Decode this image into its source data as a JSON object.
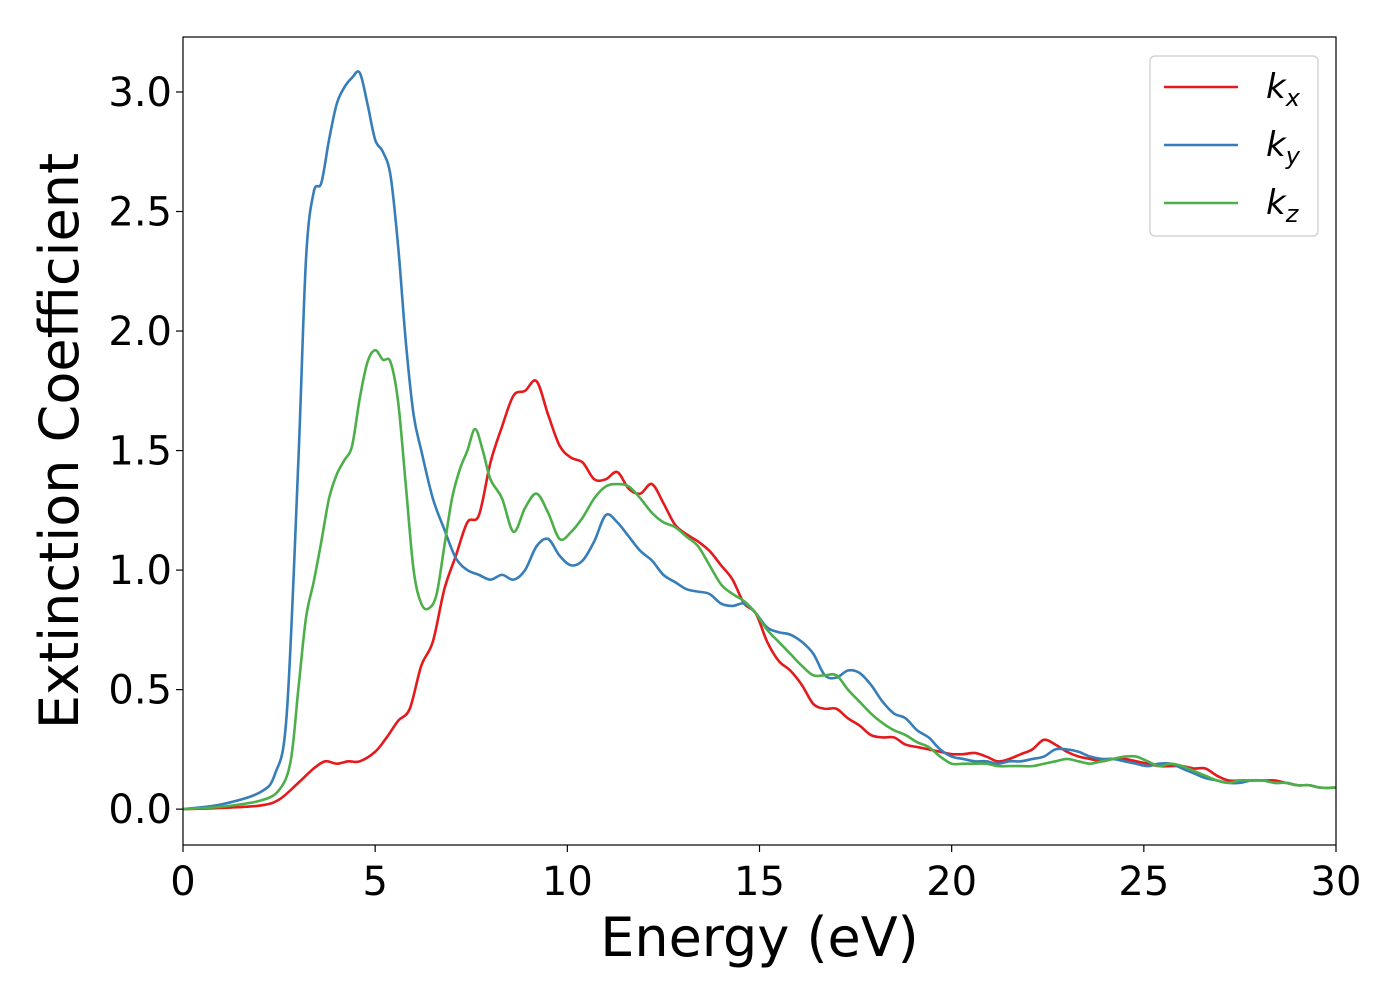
{
  "chart_data": {
    "type": "line",
    "xlabel": "Energy (eV)",
    "ylabel": "Extinction Coefficient",
    "xlim": [
      0,
      30
    ],
    "ylim": [
      -0.15,
      3.23
    ],
    "xticks": [
      0,
      5,
      10,
      15,
      20,
      25,
      30
    ],
    "xtick_labels": [
      "0",
      "5",
      "10",
      "15",
      "20",
      "25",
      "30"
    ],
    "yticks": [
      0.0,
      0.5,
      1.0,
      1.5,
      2.0,
      2.5,
      3.0
    ],
    "ytick_labels": [
      "0.0",
      "0.5",
      "1.0",
      "1.5",
      "2.0",
      "2.5",
      "3.0"
    ],
    "grid": false,
    "legend_position": "top-right",
    "series": [
      {
        "name": "k",
        "subscript": "x",
        "color": "#e41a1c",
        "x": [
          0,
          1,
          2,
          2.5,
          3,
          3.4,
          3.7,
          4.0,
          4.3,
          4.6,
          5.0,
          5.3,
          5.6,
          5.9,
          6.2,
          6.5,
          6.8,
          7.1,
          7.4,
          7.7,
          8.0,
          8.3,
          8.6,
          8.9,
          9.2,
          9.5,
          9.8,
          10.1,
          10.4,
          10.7,
          11.0,
          11.3,
          11.6,
          11.9,
          12.2,
          12.5,
          12.8,
          13.1,
          13.4,
          13.7,
          14.0,
          14.3,
          14.6,
          14.9,
          15.2,
          15.5,
          15.8,
          16.1,
          16.4,
          16.7,
          17.0,
          17.3,
          17.6,
          17.9,
          18.2,
          18.5,
          18.8,
          19.1,
          19.4,
          19.7,
          20.0,
          20.3,
          20.6,
          20.9,
          21.2,
          21.5,
          21.8,
          22.1,
          22.4,
          22.7,
          23.0,
          23.3,
          23.6,
          23.9,
          24.2,
          24.5,
          24.8,
          25.1,
          25.4,
          25.7,
          26.0,
          26.3,
          26.6,
          26.9,
          27.2,
          27.5,
          27.8,
          28.1,
          28.4,
          28.7,
          29.0,
          29.3,
          29.6,
          30.0
        ],
        "y": [
          0,
          0.005,
          0.015,
          0.04,
          0.11,
          0.17,
          0.2,
          0.19,
          0.2,
          0.2,
          0.24,
          0.3,
          0.37,
          0.42,
          0.6,
          0.7,
          0.92,
          1.06,
          1.2,
          1.23,
          1.45,
          1.6,
          1.73,
          1.75,
          1.79,
          1.65,
          1.52,
          1.47,
          1.45,
          1.38,
          1.38,
          1.41,
          1.34,
          1.32,
          1.36,
          1.28,
          1.19,
          1.15,
          1.12,
          1.08,
          1.02,
          0.96,
          0.86,
          0.82,
          0.7,
          0.62,
          0.58,
          0.52,
          0.44,
          0.42,
          0.42,
          0.38,
          0.35,
          0.31,
          0.3,
          0.3,
          0.27,
          0.26,
          0.25,
          0.24,
          0.23,
          0.23,
          0.235,
          0.22,
          0.2,
          0.21,
          0.23,
          0.25,
          0.29,
          0.27,
          0.24,
          0.22,
          0.21,
          0.2,
          0.21,
          0.21,
          0.2,
          0.19,
          0.18,
          0.18,
          0.18,
          0.17,
          0.17,
          0.14,
          0.12,
          0.12,
          0.12,
          0.12,
          0.12,
          0.11,
          0.1,
          0.1,
          0.09,
          0.09
        ]
      },
      {
        "name": "k",
        "subscript": "y",
        "color": "#377eb8",
        "x": [
          0,
          1,
          2,
          2.4,
          2.7,
          3.0,
          3.2,
          3.4,
          3.6,
          3.8,
          4.0,
          4.2,
          4.4,
          4.6,
          4.8,
          5.0,
          5.2,
          5.4,
          5.6,
          5.8,
          6.0,
          6.2,
          6.5,
          6.8,
          7.1,
          7.4,
          7.7,
          8.0,
          8.3,
          8.6,
          8.9,
          9.2,
          9.5,
          9.8,
          10.1,
          10.4,
          10.7,
          11.0,
          11.3,
          11.6,
          11.9,
          12.2,
          12.5,
          12.8,
          13.1,
          13.4,
          13.7,
          14.0,
          14.3,
          14.6,
          14.9,
          15.2,
          15.5,
          15.8,
          16.1,
          16.4,
          16.7,
          17.0,
          17.3,
          17.6,
          17.9,
          18.2,
          18.5,
          18.8,
          19.1,
          19.4,
          19.7,
          20.0,
          20.3,
          20.6,
          20.9,
          21.2,
          21.5,
          21.8,
          22.1,
          22.4,
          22.7,
          23.0,
          23.3,
          23.6,
          23.9,
          24.2,
          24.5,
          24.8,
          25.1,
          25.4,
          25.7,
          26.0,
          26.3,
          26.6,
          26.9,
          27.2,
          27.5,
          27.8,
          28.1,
          28.4,
          28.7,
          29.0,
          29.3,
          29.6,
          30.0
        ],
        "y": [
          0,
          0.02,
          0.07,
          0.15,
          0.4,
          1.45,
          2.3,
          2.58,
          2.62,
          2.8,
          2.95,
          3.02,
          3.06,
          3.08,
          2.95,
          2.8,
          2.75,
          2.65,
          2.35,
          1.95,
          1.65,
          1.5,
          1.3,
          1.17,
          1.05,
          1.0,
          0.98,
          0.96,
          0.98,
          0.96,
          1.0,
          1.1,
          1.13,
          1.06,
          1.02,
          1.04,
          1.12,
          1.23,
          1.2,
          1.14,
          1.08,
          1.04,
          0.98,
          0.95,
          0.92,
          0.91,
          0.9,
          0.86,
          0.85,
          0.86,
          0.82,
          0.76,
          0.74,
          0.73,
          0.7,
          0.65,
          0.56,
          0.55,
          0.58,
          0.57,
          0.52,
          0.45,
          0.4,
          0.38,
          0.33,
          0.3,
          0.25,
          0.22,
          0.21,
          0.2,
          0.2,
          0.19,
          0.2,
          0.2,
          0.21,
          0.22,
          0.25,
          0.25,
          0.24,
          0.22,
          0.21,
          0.21,
          0.2,
          0.19,
          0.18,
          0.19,
          0.19,
          0.17,
          0.15,
          0.13,
          0.12,
          0.11,
          0.11,
          0.12,
          0.12,
          0.11,
          0.11,
          0.1,
          0.1,
          0.09,
          0.09
        ]
      },
      {
        "name": "k",
        "subscript": "z",
        "color": "#4daf4a",
        "x": [
          0,
          1,
          2,
          2.5,
          2.8,
          3.0,
          3.2,
          3.4,
          3.6,
          3.8,
          4.0,
          4.2,
          4.4,
          4.6,
          4.8,
          5.0,
          5.2,
          5.4,
          5.6,
          5.8,
          6.0,
          6.2,
          6.4,
          6.6,
          6.8,
          7.0,
          7.2,
          7.4,
          7.6,
          7.8,
          8.0,
          8.3,
          8.6,
          8.9,
          9.2,
          9.5,
          9.8,
          10.1,
          10.4,
          10.7,
          11.0,
          11.3,
          11.6,
          11.9,
          12.2,
          12.5,
          12.8,
          13.1,
          13.4,
          13.7,
          14.0,
          14.3,
          14.6,
          14.9,
          15.2,
          15.5,
          15.8,
          16.1,
          16.4,
          16.7,
          17.0,
          17.3,
          17.6,
          17.9,
          18.2,
          18.5,
          18.8,
          19.1,
          19.4,
          19.7,
          20.0,
          20.3,
          20.6,
          20.9,
          21.2,
          21.5,
          21.8,
          22.1,
          22.4,
          22.7,
          23.0,
          23.3,
          23.6,
          23.9,
          24.2,
          24.5,
          24.8,
          25.1,
          25.4,
          25.7,
          26.0,
          26.3,
          26.6,
          26.9,
          27.2,
          27.5,
          27.8,
          28.1,
          28.4,
          28.7,
          29.0,
          29.3,
          29.6,
          30.0
        ],
        "y": [
          0,
          0.01,
          0.035,
          0.08,
          0.2,
          0.5,
          0.8,
          0.95,
          1.12,
          1.3,
          1.4,
          1.46,
          1.52,
          1.72,
          1.87,
          1.92,
          1.88,
          1.87,
          1.7,
          1.35,
          1.0,
          0.86,
          0.84,
          0.9,
          1.1,
          1.3,
          1.42,
          1.5,
          1.59,
          1.5,
          1.38,
          1.3,
          1.16,
          1.26,
          1.32,
          1.24,
          1.13,
          1.16,
          1.22,
          1.3,
          1.35,
          1.36,
          1.35,
          1.3,
          1.24,
          1.2,
          1.18,
          1.14,
          1.1,
          1.02,
          0.94,
          0.9,
          0.87,
          0.82,
          0.75,
          0.7,
          0.65,
          0.6,
          0.56,
          0.56,
          0.56,
          0.5,
          0.45,
          0.4,
          0.36,
          0.33,
          0.31,
          0.28,
          0.26,
          0.22,
          0.19,
          0.19,
          0.19,
          0.19,
          0.18,
          0.18,
          0.18,
          0.18,
          0.19,
          0.2,
          0.21,
          0.2,
          0.19,
          0.2,
          0.21,
          0.22,
          0.22,
          0.2,
          0.18,
          0.19,
          0.18,
          0.16,
          0.14,
          0.12,
          0.11,
          0.12,
          0.12,
          0.12,
          0.11,
          0.11,
          0.1,
          0.1,
          0.09,
          0.09
        ]
      }
    ]
  }
}
